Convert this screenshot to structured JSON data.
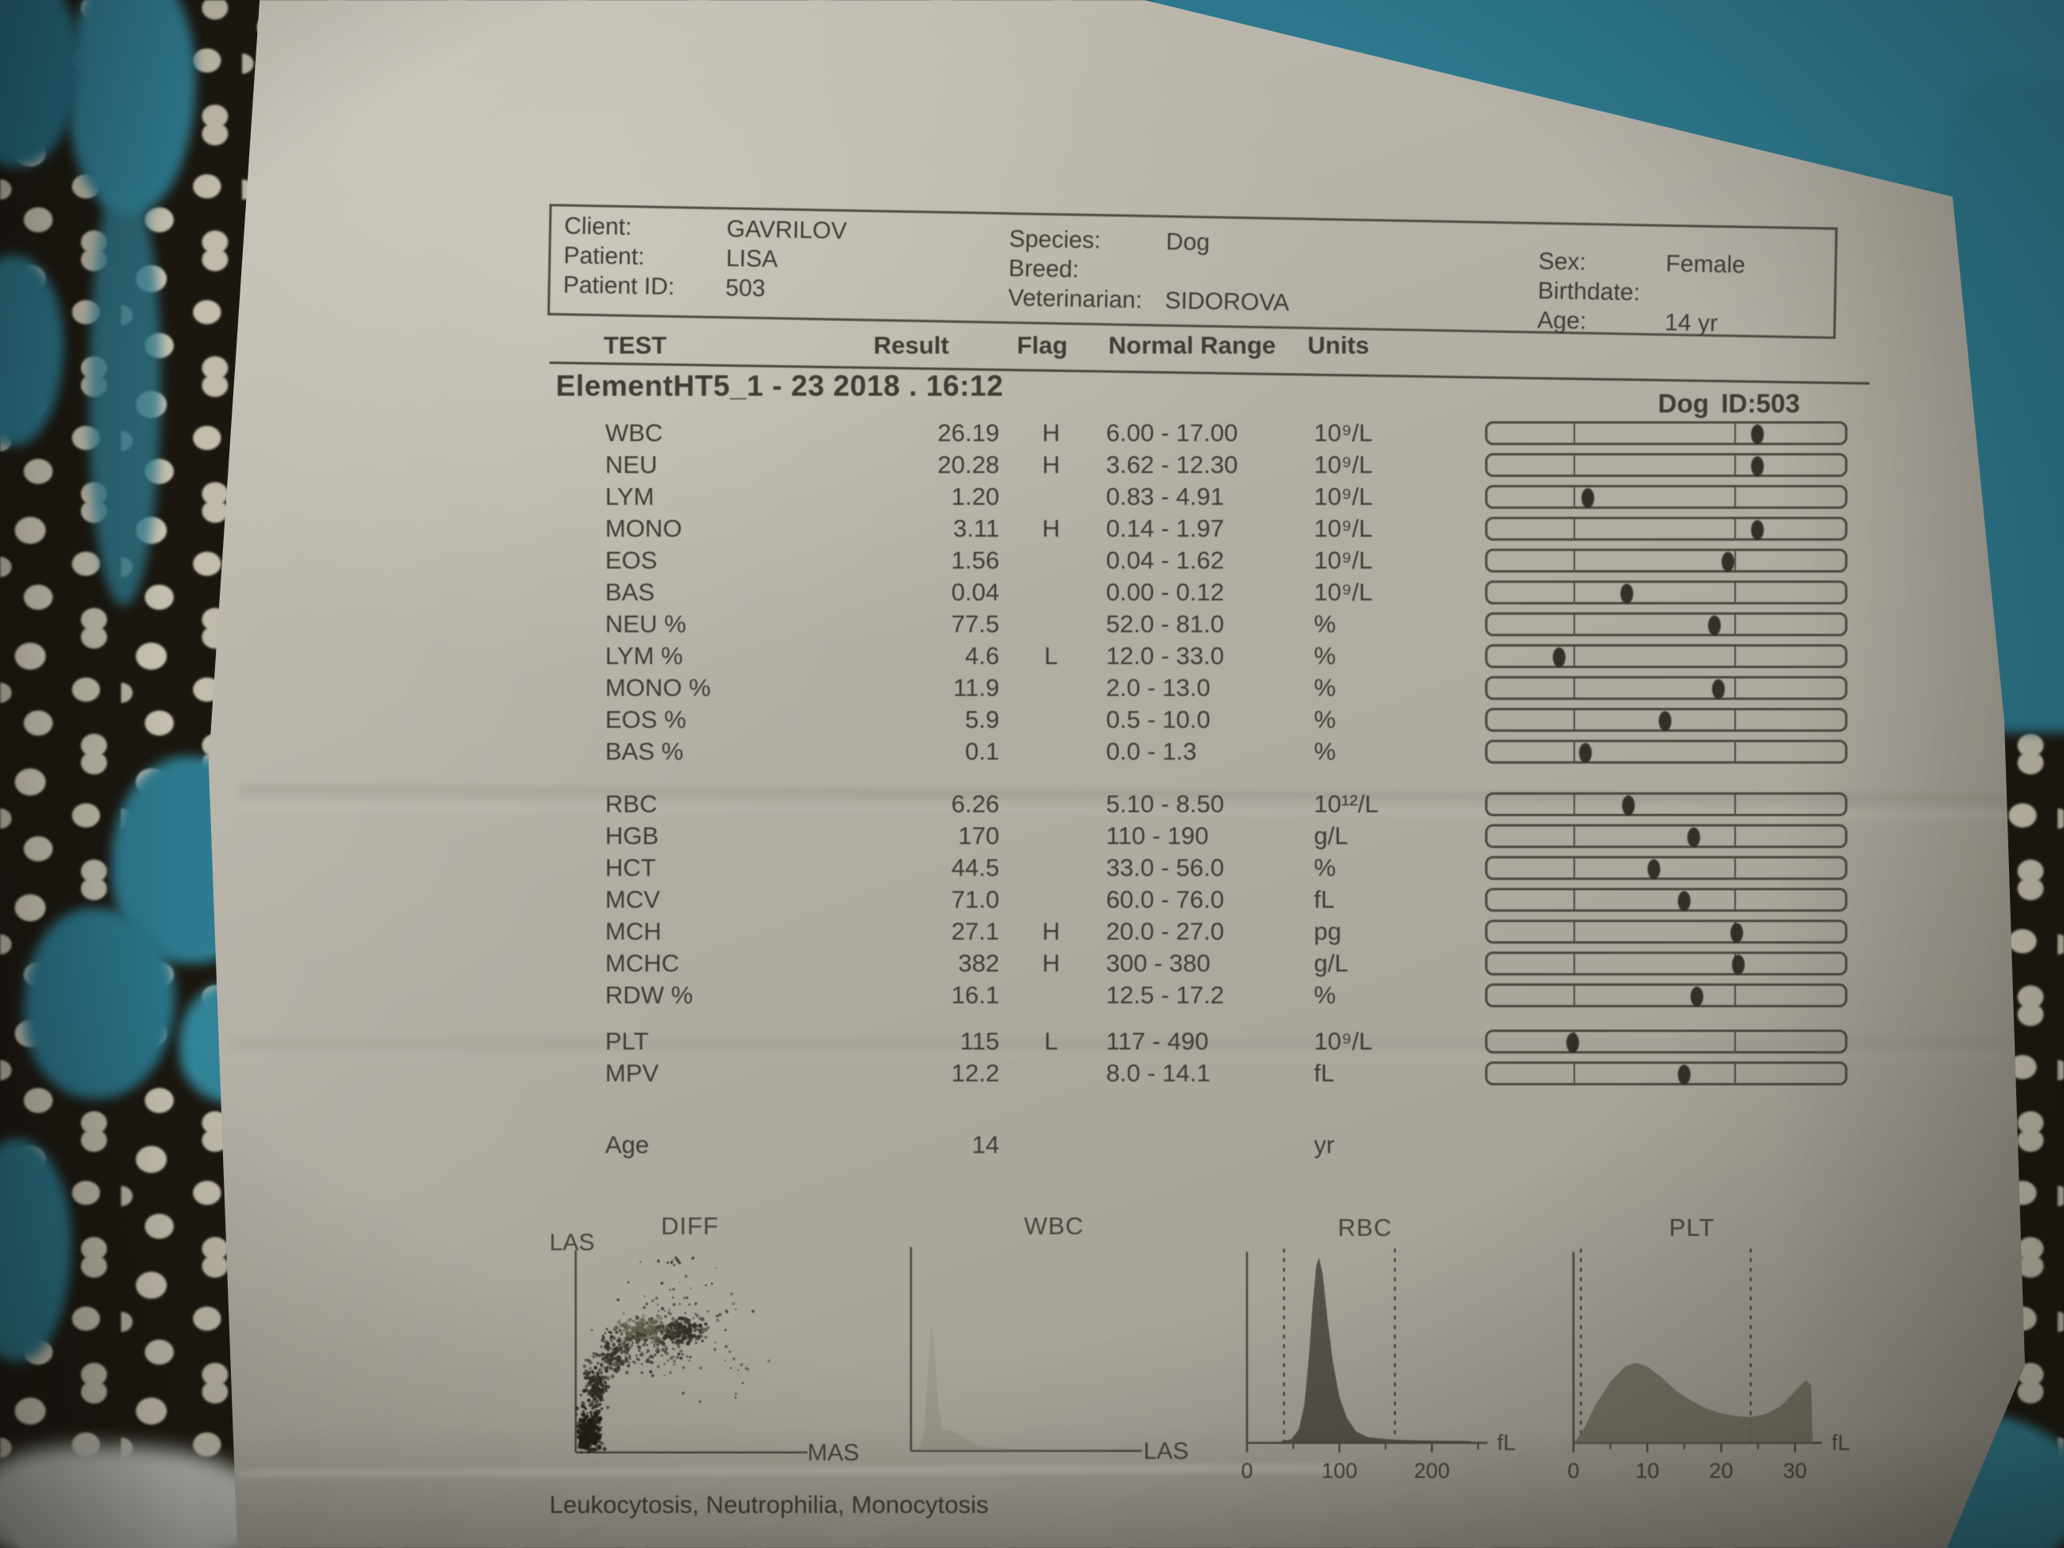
{
  "header": {
    "columns": [
      {
        "fields": [
          {
            "label": "Client:",
            "value": "GAVRILOV"
          },
          {
            "label": "Patient:",
            "value": "LISA"
          },
          {
            "label": "Patient ID:",
            "value": "503"
          }
        ]
      },
      {
        "fields": [
          {
            "label": "Species:",
            "value": "Dog"
          },
          {
            "label": "Breed:",
            "value": ""
          },
          {
            "label": "Veterinarian:",
            "value": "SIDOROVA"
          }
        ]
      },
      {
        "fields": [
          {
            "label": "Sex:",
            "value": "Female"
          },
          {
            "label": "Birthdate:",
            "value": ""
          },
          {
            "label": "Age:",
            "value": "14 yr"
          }
        ]
      }
    ]
  },
  "table": {
    "columns": [
      "TEST",
      "Result",
      "Flag",
      "Normal Range",
      "Units"
    ],
    "title": "ElementHT5_1 - 23  2018 . 16:12",
    "device_id": "Dog ID:503",
    "bar_axis": {
      "low_tick_pct": 24,
      "high_tick_pct": 69,
      "clamp_low_pct": 20,
      "clamp_high_pct": 75.5
    },
    "groups": [
      {
        "rows": [
          {
            "test": "WBC",
            "result": "26.19",
            "flag": "H",
            "range": "6.00 - 17.00",
            "unit": "10⁹/L",
            "value": 26.19,
            "low": 6.0,
            "high": 17.0
          },
          {
            "test": "NEU",
            "result": "20.28",
            "flag": "H",
            "range": "3.62 - 12.30",
            "unit": "10⁹/L",
            "value": 20.28,
            "low": 3.62,
            "high": 12.3
          },
          {
            "test": "LYM",
            "result": "1.20",
            "flag": "",
            "range": "0.83 - 4.91",
            "unit": "10⁹/L",
            "value": 1.2,
            "low": 0.83,
            "high": 4.91
          },
          {
            "test": "MONO",
            "result": "3.11",
            "flag": "H",
            "range": "0.14 - 1.97",
            "unit": "10⁹/L",
            "value": 3.11,
            "low": 0.14,
            "high": 1.97
          },
          {
            "test": "EOS",
            "result": "1.56",
            "flag": "",
            "range": "0.04 - 1.62",
            "unit": "10⁹/L",
            "value": 1.56,
            "low": 0.04,
            "high": 1.62
          },
          {
            "test": "BAS",
            "result": "0.04",
            "flag": "",
            "range": "0.00 - 0.12",
            "unit": "10⁹/L",
            "value": 0.04,
            "low": 0.0,
            "high": 0.12
          },
          {
            "test": "NEU %",
            "result": "77.5",
            "flag": "",
            "range": "52.0 - 81.0",
            "unit": "%",
            "value": 77.5,
            "low": 52.0,
            "high": 81.0
          },
          {
            "test": "LYM %",
            "result": "4.6",
            "flag": "L",
            "range": "12.0 - 33.0",
            "unit": "%",
            "value": 4.6,
            "low": 12.0,
            "high": 33.0
          },
          {
            "test": "MONO %",
            "result": "11.9",
            "flag": "",
            "range": "2.0 - 13.0",
            "unit": "%",
            "value": 11.9,
            "low": 2.0,
            "high": 13.0
          },
          {
            "test": "EOS %",
            "result": "5.9",
            "flag": "",
            "range": "0.5 - 10.0",
            "unit": "%",
            "value": 5.9,
            "low": 0.5,
            "high": 10.0
          },
          {
            "test": "BAS %",
            "result": "0.1",
            "flag": "",
            "range": "0.0 - 1.3",
            "unit": "%",
            "value": 0.1,
            "low": 0.0,
            "high": 1.3
          }
        ]
      },
      {
        "rows": [
          {
            "test": "RBC",
            "result": "6.26",
            "flag": "",
            "range": "5.10 - 8.50",
            "unit": "10¹²/L",
            "value": 6.26,
            "low": 5.1,
            "high": 8.5
          },
          {
            "test": "HGB",
            "result": "170",
            "flag": "",
            "range": "110 - 190",
            "unit": "g/L",
            "value": 170,
            "low": 110,
            "high": 190
          },
          {
            "test": "HCT",
            "result": "44.5",
            "flag": "",
            "range": "33.0 - 56.0",
            "unit": "%",
            "value": 44.5,
            "low": 33.0,
            "high": 56.0
          },
          {
            "test": "MCV",
            "result": "71.0",
            "flag": "",
            "range": "60.0 - 76.0",
            "unit": "fL",
            "value": 71.0,
            "low": 60.0,
            "high": 76.0
          },
          {
            "test": "MCH",
            "result": "27.1",
            "flag": "H",
            "range": "20.0 - 27.0",
            "unit": "pg",
            "value": 27.1,
            "low": 20.0,
            "high": 27.0
          },
          {
            "test": "MCHC",
            "result": "382",
            "flag": "H",
            "range": "300 - 380",
            "unit": "g/L",
            "value": 382,
            "low": 300,
            "high": 380
          },
          {
            "test": "RDW %",
            "result": "16.1",
            "flag": "",
            "range": "12.5 - 17.2",
            "unit": "%",
            "value": 16.1,
            "low": 12.5,
            "high": 17.2
          }
        ]
      },
      {
        "rows": [
          {
            "test": "PLT",
            "result": "115",
            "flag": "L",
            "range": "117 - 490",
            "unit": "10⁹/L",
            "value": 115,
            "low": 117,
            "high": 490
          },
          {
            "test": "MPV",
            "result": "12.2",
            "flag": "",
            "range": "8.0 - 14.1",
            "unit": "fL",
            "value": 12.2,
            "low": 8.0,
            "high": 14.1
          }
        ]
      }
    ],
    "age_row": {
      "test": "Age",
      "result": "14",
      "flag": "",
      "range": "",
      "unit": "yr"
    }
  },
  "note": "Leukocytosis, Neutrophilia, Monocytosis",
  "chart_data": [
    {
      "type": "scatter",
      "title": "DIFF",
      "xlabel": "MAS",
      "ylabel": "LAS",
      "x_range": [
        0,
        1
      ],
      "y_range": [
        0,
        1
      ],
      "seed": 7,
      "clusters": [
        {
          "cx": 0.06,
          "cy": 0.1,
          "rx": 0.05,
          "ry": 0.1,
          "n": 320,
          "color": "#1e1c17",
          "r": 2.2
        },
        {
          "cx": 0.09,
          "cy": 0.32,
          "rx": 0.05,
          "ry": 0.13,
          "n": 200,
          "color": "#2b2922",
          "r": 2.0
        },
        {
          "cx": 0.17,
          "cy": 0.5,
          "rx": 0.07,
          "ry": 0.1,
          "n": 150,
          "color": "#34322a",
          "r": 2.0
        },
        {
          "cx": 0.3,
          "cy": 0.61,
          "rx": 0.1,
          "ry": 0.07,
          "n": 160,
          "color": "#63604f",
          "r": 2.4
        },
        {
          "cx": 0.47,
          "cy": 0.6,
          "rx": 0.09,
          "ry": 0.06,
          "n": 170,
          "color": "#2f2d26",
          "r": 2.2
        },
        {
          "cx": 0.33,
          "cy": 0.52,
          "rx": 0.16,
          "ry": 0.12,
          "n": 130,
          "color": "#3b3931",
          "r": 1.8
        },
        {
          "cx": 0.45,
          "cy": 0.72,
          "rx": 0.25,
          "ry": 0.15,
          "n": 60,
          "color": "#43413a",
          "r": 1.6
        },
        {
          "cx": 0.42,
          "cy": 0.95,
          "rx": 0.1,
          "ry": 0.025,
          "n": 14,
          "color": "#3b3931",
          "r": 1.8
        },
        {
          "cx": 0.65,
          "cy": 0.45,
          "rx": 0.25,
          "ry": 0.22,
          "n": 28,
          "color": "#46443c",
          "r": 1.6
        }
      ]
    },
    {
      "type": "area",
      "title": "WBC",
      "xlabel": "LAS",
      "x_range": [
        0,
        1
      ],
      "fill": "#8d8a7e",
      "fill_opacity": 0.38,
      "points": [
        [
          0,
          0
        ],
        [
          0.04,
          0.01
        ],
        [
          0.06,
          0.1
        ],
        [
          0.075,
          0.4
        ],
        [
          0.09,
          0.62
        ],
        [
          0.105,
          0.5
        ],
        [
          0.12,
          0.22
        ],
        [
          0.14,
          0.1
        ],
        [
          0.18,
          0.1
        ],
        [
          0.23,
          0.07
        ],
        [
          0.3,
          0.02
        ],
        [
          0.45,
          0.01
        ],
        [
          0.9,
          0
        ]
      ]
    },
    {
      "type": "area",
      "title": "RBC",
      "x_unit": "fL",
      "x_range": [
        0,
        255
      ],
      "ticks": [
        0,
        100,
        200
      ],
      "minor_ticks": [
        50,
        150,
        250
      ],
      "dashed_lines": [
        40,
        160
      ],
      "fill": "#4e4b43",
      "fill_opacity": 0.92,
      "points": [
        [
          0,
          0
        ],
        [
          35,
          0.005
        ],
        [
          48,
          0.02
        ],
        [
          56,
          0.07
        ],
        [
          62,
          0.2
        ],
        [
          67,
          0.45
        ],
        [
          71,
          0.72
        ],
        [
          75,
          0.93
        ],
        [
          78,
          0.97
        ],
        [
          82,
          0.88
        ],
        [
          87,
          0.65
        ],
        [
          93,
          0.42
        ],
        [
          100,
          0.24
        ],
        [
          108,
          0.13
        ],
        [
          118,
          0.06
        ],
        [
          130,
          0.03
        ],
        [
          150,
          0.02
        ],
        [
          170,
          0.015
        ],
        [
          200,
          0.012
        ],
        [
          240,
          0.01
        ],
        [
          250,
          0
        ]
      ]
    },
    {
      "type": "area",
      "title": "PLT",
      "x_unit": "fL",
      "x_range": [
        0,
        33
      ],
      "ticks": [
        0,
        10,
        20,
        30
      ],
      "minor_ticks": [
        5,
        15,
        25
      ],
      "dashed_lines": [
        1,
        24
      ],
      "fill": "#6e6b60",
      "fill_opacity": 0.88,
      "points": [
        [
          0,
          0
        ],
        [
          0.5,
          0.02
        ],
        [
          1.5,
          0.08
        ],
        [
          3,
          0.2
        ],
        [
          5,
          0.32
        ],
        [
          7,
          0.4
        ],
        [
          8.5,
          0.42
        ],
        [
          10,
          0.4
        ],
        [
          12,
          0.34
        ],
        [
          14,
          0.27
        ],
        [
          16,
          0.22
        ],
        [
          18,
          0.18
        ],
        [
          20,
          0.155
        ],
        [
          22,
          0.14
        ],
        [
          24,
          0.135
        ],
        [
          26,
          0.15
        ],
        [
          28,
          0.19
        ],
        [
          30,
          0.27
        ],
        [
          31.5,
          0.33
        ],
        [
          32.2,
          0.3
        ],
        [
          32.4,
          0
        ]
      ]
    }
  ]
}
